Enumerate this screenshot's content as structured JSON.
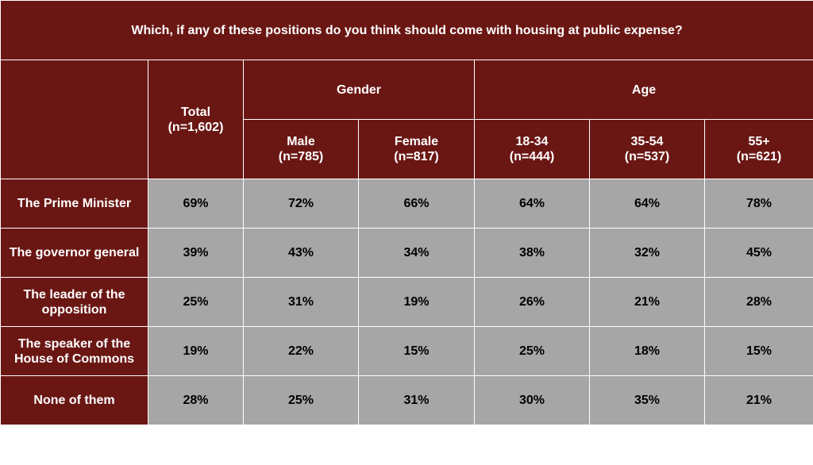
{
  "chart_data": {
    "type": "table",
    "title": "Which, if any of these positions do you think should come with housing at public expense?",
    "total_header": [
      "Total",
      "(n=1,602)"
    ],
    "groups": [
      {
        "label": "Gender",
        "columns": [
          [
            "Male",
            "(n=785)"
          ],
          [
            "Female",
            "(n=817)"
          ]
        ]
      },
      {
        "label": "Age",
        "columns": [
          [
            "18-34",
            "(n=444)"
          ],
          [
            "35-54",
            "(n=537)"
          ],
          [
            "55+",
            "(n=621)"
          ]
        ]
      }
    ],
    "rows": [
      {
        "label": "The Prime Minister",
        "values": [
          "69%",
          "72%",
          "66%",
          "64%",
          "64%",
          "78%"
        ]
      },
      {
        "label": "The governor general",
        "values": [
          "39%",
          "43%",
          "34%",
          "38%",
          "32%",
          "45%"
        ]
      },
      {
        "label": "The leader of the opposition",
        "values": [
          "25%",
          "31%",
          "19%",
          "26%",
          "21%",
          "28%"
        ]
      },
      {
        "label": "The speaker of the House of Commons",
        "values": [
          "19%",
          "22%",
          "15%",
          "25%",
          "18%",
          "15%"
        ]
      },
      {
        "label": "None of them",
        "values": [
          "28%",
          "25%",
          "31%",
          "30%",
          "35%",
          "21%"
        ]
      }
    ]
  },
  "colors": {
    "header_bg": "#6a1714",
    "cell_bg": "#a6a6a6",
    "header_text": "#ffffff",
    "cell_text": "#000000"
  }
}
